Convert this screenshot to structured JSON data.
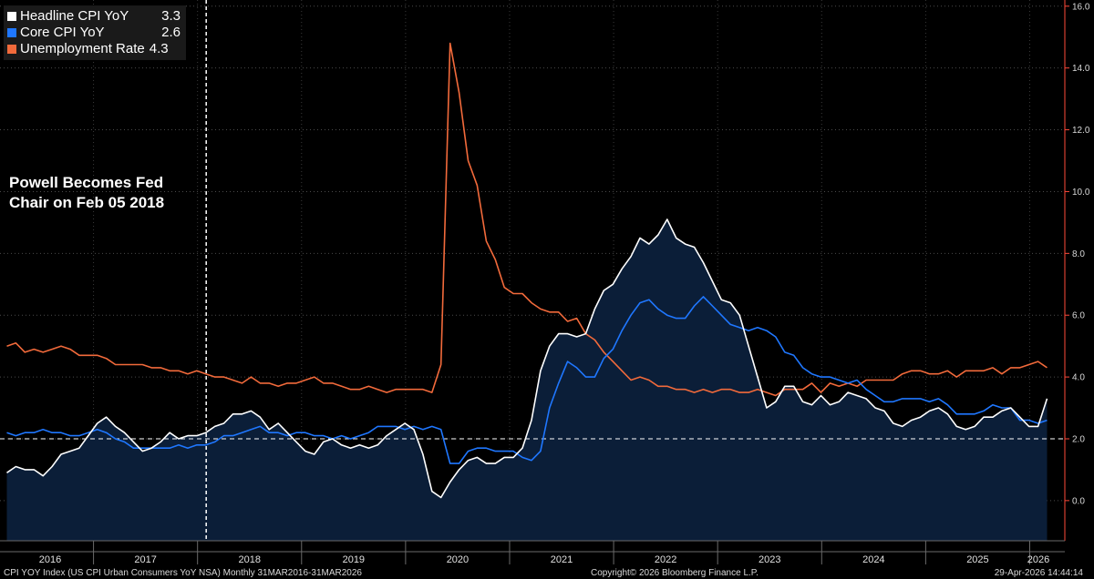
{
  "chart_data": {
    "type": "line",
    "x_start": "2016-03",
    "x_end": "2026-03",
    "x_labels": [
      "2016",
      "2017",
      "2018",
      "2019",
      "2020",
      "2021",
      "2022",
      "2023",
      "2024",
      "2025",
      "2026"
    ],
    "y_ticks": [
      "0.0",
      "2.0",
      "4.0",
      "6.0",
      "8.0",
      "10.0",
      "12.0",
      "14.0",
      "16.0"
    ],
    "ylim": [
      -1.3,
      16.2
    ],
    "reference_line": 2.0,
    "vertical_marker": "2018-02",
    "annotation": "Powell Becomes Fed Chair on Feb 05 2018",
    "series": [
      {
        "name": "Headline CPI YoY",
        "last_value": "3.3",
        "color": "#ffffff",
        "fill": "#0b1e38",
        "values": [
          0.9,
          1.1,
          1.0,
          1.0,
          0.8,
          1.1,
          1.5,
          1.6,
          1.7,
          2.1,
          2.5,
          2.7,
          2.4,
          2.2,
          1.9,
          1.6,
          1.7,
          1.9,
          2.2,
          2.0,
          2.1,
          2.1,
          2.2,
          2.4,
          2.5,
          2.8,
          2.8,
          2.9,
          2.7,
          2.3,
          2.5,
          2.2,
          1.9,
          1.6,
          1.5,
          1.9,
          2.0,
          1.8,
          1.7,
          1.8,
          1.7,
          1.8,
          2.1,
          2.3,
          2.5,
          2.3,
          1.5,
          0.3,
          0.1,
          0.6,
          1.0,
          1.3,
          1.4,
          1.2,
          1.2,
          1.4,
          1.4,
          1.7,
          2.6,
          4.2,
          5.0,
          5.4,
          5.4,
          5.3,
          5.4,
          6.2,
          6.8,
          7.0,
          7.5,
          7.9,
          8.5,
          8.3,
          8.6,
          9.1,
          8.5,
          8.3,
          8.2,
          7.7,
          7.1,
          6.5,
          6.4,
          6.0,
          5.0,
          4.0,
          3.0,
          3.2,
          3.7,
          3.7,
          3.2,
          3.1,
          3.4,
          3.1,
          3.2,
          3.5,
          3.4,
          3.3,
          3.0,
          2.9,
          2.5,
          2.4,
          2.6,
          2.7,
          2.9,
          3.0,
          2.8,
          2.4,
          2.3,
          2.4,
          2.7,
          2.7,
          2.9,
          3.0,
          2.7,
          2.4,
          2.4,
          3.3
        ]
      },
      {
        "name": "Core CPI YoY",
        "last_value": "2.6",
        "color": "#1f77ff",
        "values": [
          2.2,
          2.1,
          2.2,
          2.2,
          2.3,
          2.2,
          2.2,
          2.1,
          2.1,
          2.2,
          2.3,
          2.2,
          2.0,
          1.9,
          1.7,
          1.7,
          1.7,
          1.7,
          1.7,
          1.8,
          1.7,
          1.8,
          1.8,
          1.9,
          2.1,
          2.1,
          2.2,
          2.3,
          2.4,
          2.2,
          2.2,
          2.1,
          2.2,
          2.2,
          2.1,
          2.1,
          2.0,
          2.1,
          2.0,
          2.1,
          2.2,
          2.4,
          2.4,
          2.4,
          2.3,
          2.4,
          2.3,
          2.4,
          2.3,
          1.2,
          1.2,
          1.6,
          1.7,
          1.7,
          1.6,
          1.6,
          1.6,
          1.4,
          1.3,
          1.6,
          3.0,
          3.8,
          4.5,
          4.3,
          4.0,
          4.0,
          4.6,
          4.9,
          5.5,
          6.0,
          6.4,
          6.5,
          6.2,
          6.0,
          5.9,
          5.9,
          6.3,
          6.6,
          6.3,
          6.0,
          5.7,
          5.6,
          5.5,
          5.6,
          5.5,
          5.3,
          4.8,
          4.7,
          4.3,
          4.1,
          4.0,
          4.0,
          3.9,
          3.8,
          3.9,
          3.6,
          3.4,
          3.2,
          3.2,
          3.3,
          3.3,
          3.3,
          3.2,
          3.3,
          3.1,
          2.8,
          2.8,
          2.8,
          2.9,
          3.1,
          3.0,
          3.0,
          2.6,
          2.6,
          2.5,
          2.6
        ]
      },
      {
        "name": "Unemployment Rate",
        "last_value": "4.3",
        "color": "#f26a3b",
        "values": [
          5.0,
          5.1,
          4.8,
          4.9,
          4.8,
          4.9,
          5.0,
          4.9,
          4.7,
          4.7,
          4.7,
          4.6,
          4.4,
          4.4,
          4.4,
          4.4,
          4.3,
          4.3,
          4.2,
          4.2,
          4.1,
          4.2,
          4.1,
          4.0,
          4.0,
          3.9,
          3.8,
          4.0,
          3.8,
          3.8,
          3.7,
          3.8,
          3.8,
          3.9,
          4.0,
          3.8,
          3.8,
          3.7,
          3.6,
          3.6,
          3.7,
          3.6,
          3.5,
          3.6,
          3.6,
          3.6,
          3.6,
          3.5,
          4.4,
          14.8,
          13.2,
          11.0,
          10.2,
          8.4,
          7.8,
          6.9,
          6.7,
          6.7,
          6.4,
          6.2,
          6.1,
          6.1,
          5.8,
          5.9,
          5.4,
          5.2,
          4.8,
          4.5,
          4.2,
          3.9,
          4.0,
          3.9,
          3.7,
          3.7,
          3.6,
          3.6,
          3.5,
          3.6,
          3.5,
          3.6,
          3.6,
          3.5,
          3.5,
          3.6,
          3.5,
          3.4,
          3.6,
          3.6,
          3.6,
          3.8,
          3.5,
          3.8,
          3.7,
          3.8,
          3.7,
          3.9,
          3.9,
          3.9,
          3.9,
          4.1,
          4.2,
          4.2,
          4.1,
          4.1,
          4.2,
          4.0,
          4.2,
          4.2,
          4.2,
          4.3,
          4.1,
          4.3,
          4.3,
          4.4,
          4.5,
          4.3
        ]
      }
    ]
  },
  "footer": {
    "left": "CPI YOY Index (US CPI Urban Consumers YoY NSA) Monthly 31MAR2016-31MAR2026",
    "center": "Copyright© 2026 Bloomberg Finance L.P.",
    "right": "29-Apr-2026 14:44:14"
  }
}
